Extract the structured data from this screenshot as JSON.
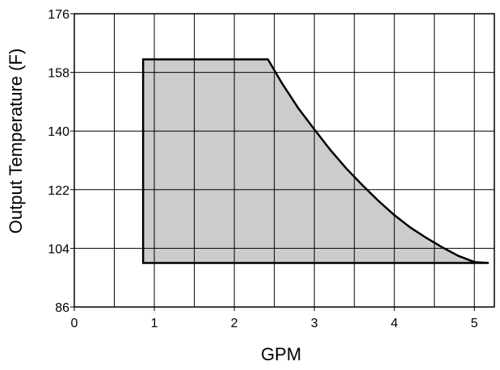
{
  "chart_data": {
    "type": "area",
    "title": "",
    "xlabel": "GPM",
    "ylabel": "Output Temperature (F)",
    "xlim": [
      0,
      5.25
    ],
    "ylim": [
      86,
      176
    ],
    "x_ticks": [
      0,
      1,
      2,
      3,
      4,
      5
    ],
    "x_tick_labels": [
      "0",
      "1",
      "2",
      "3",
      "4",
      "5"
    ],
    "y_ticks": [
      86,
      104,
      122,
      140,
      158,
      176
    ],
    "y_tick_labels": [
      "86",
      "104",
      "122",
      "140",
      "158",
      "176"
    ],
    "x_gridlines": [
      0.5,
      1,
      1.5,
      2,
      2.5,
      3,
      3.5,
      4,
      4.5,
      5
    ],
    "y_gridlines": [
      104,
      122,
      140,
      158
    ],
    "grid": true,
    "legend": "none",
    "series": [
      {
        "fill_color": "#cccccc",
        "line_color": "#000000",
        "x": [
          0.86,
          0.86,
          2.42,
          2.6,
          2.8,
          3.0,
          3.2,
          3.4,
          3.6,
          3.8,
          4.0,
          4.2,
          4.4,
          4.6,
          4.8,
          5.0,
          5.18,
          0.86
        ],
        "y": [
          99.5,
          162,
          162,
          154.5,
          147,
          140.5,
          134.2,
          128.5,
          123.4,
          118.6,
          114.2,
          110.4,
          107.2,
          104.3,
          101.7,
          99.8,
          99.5,
          99.5
        ]
      }
    ]
  }
}
